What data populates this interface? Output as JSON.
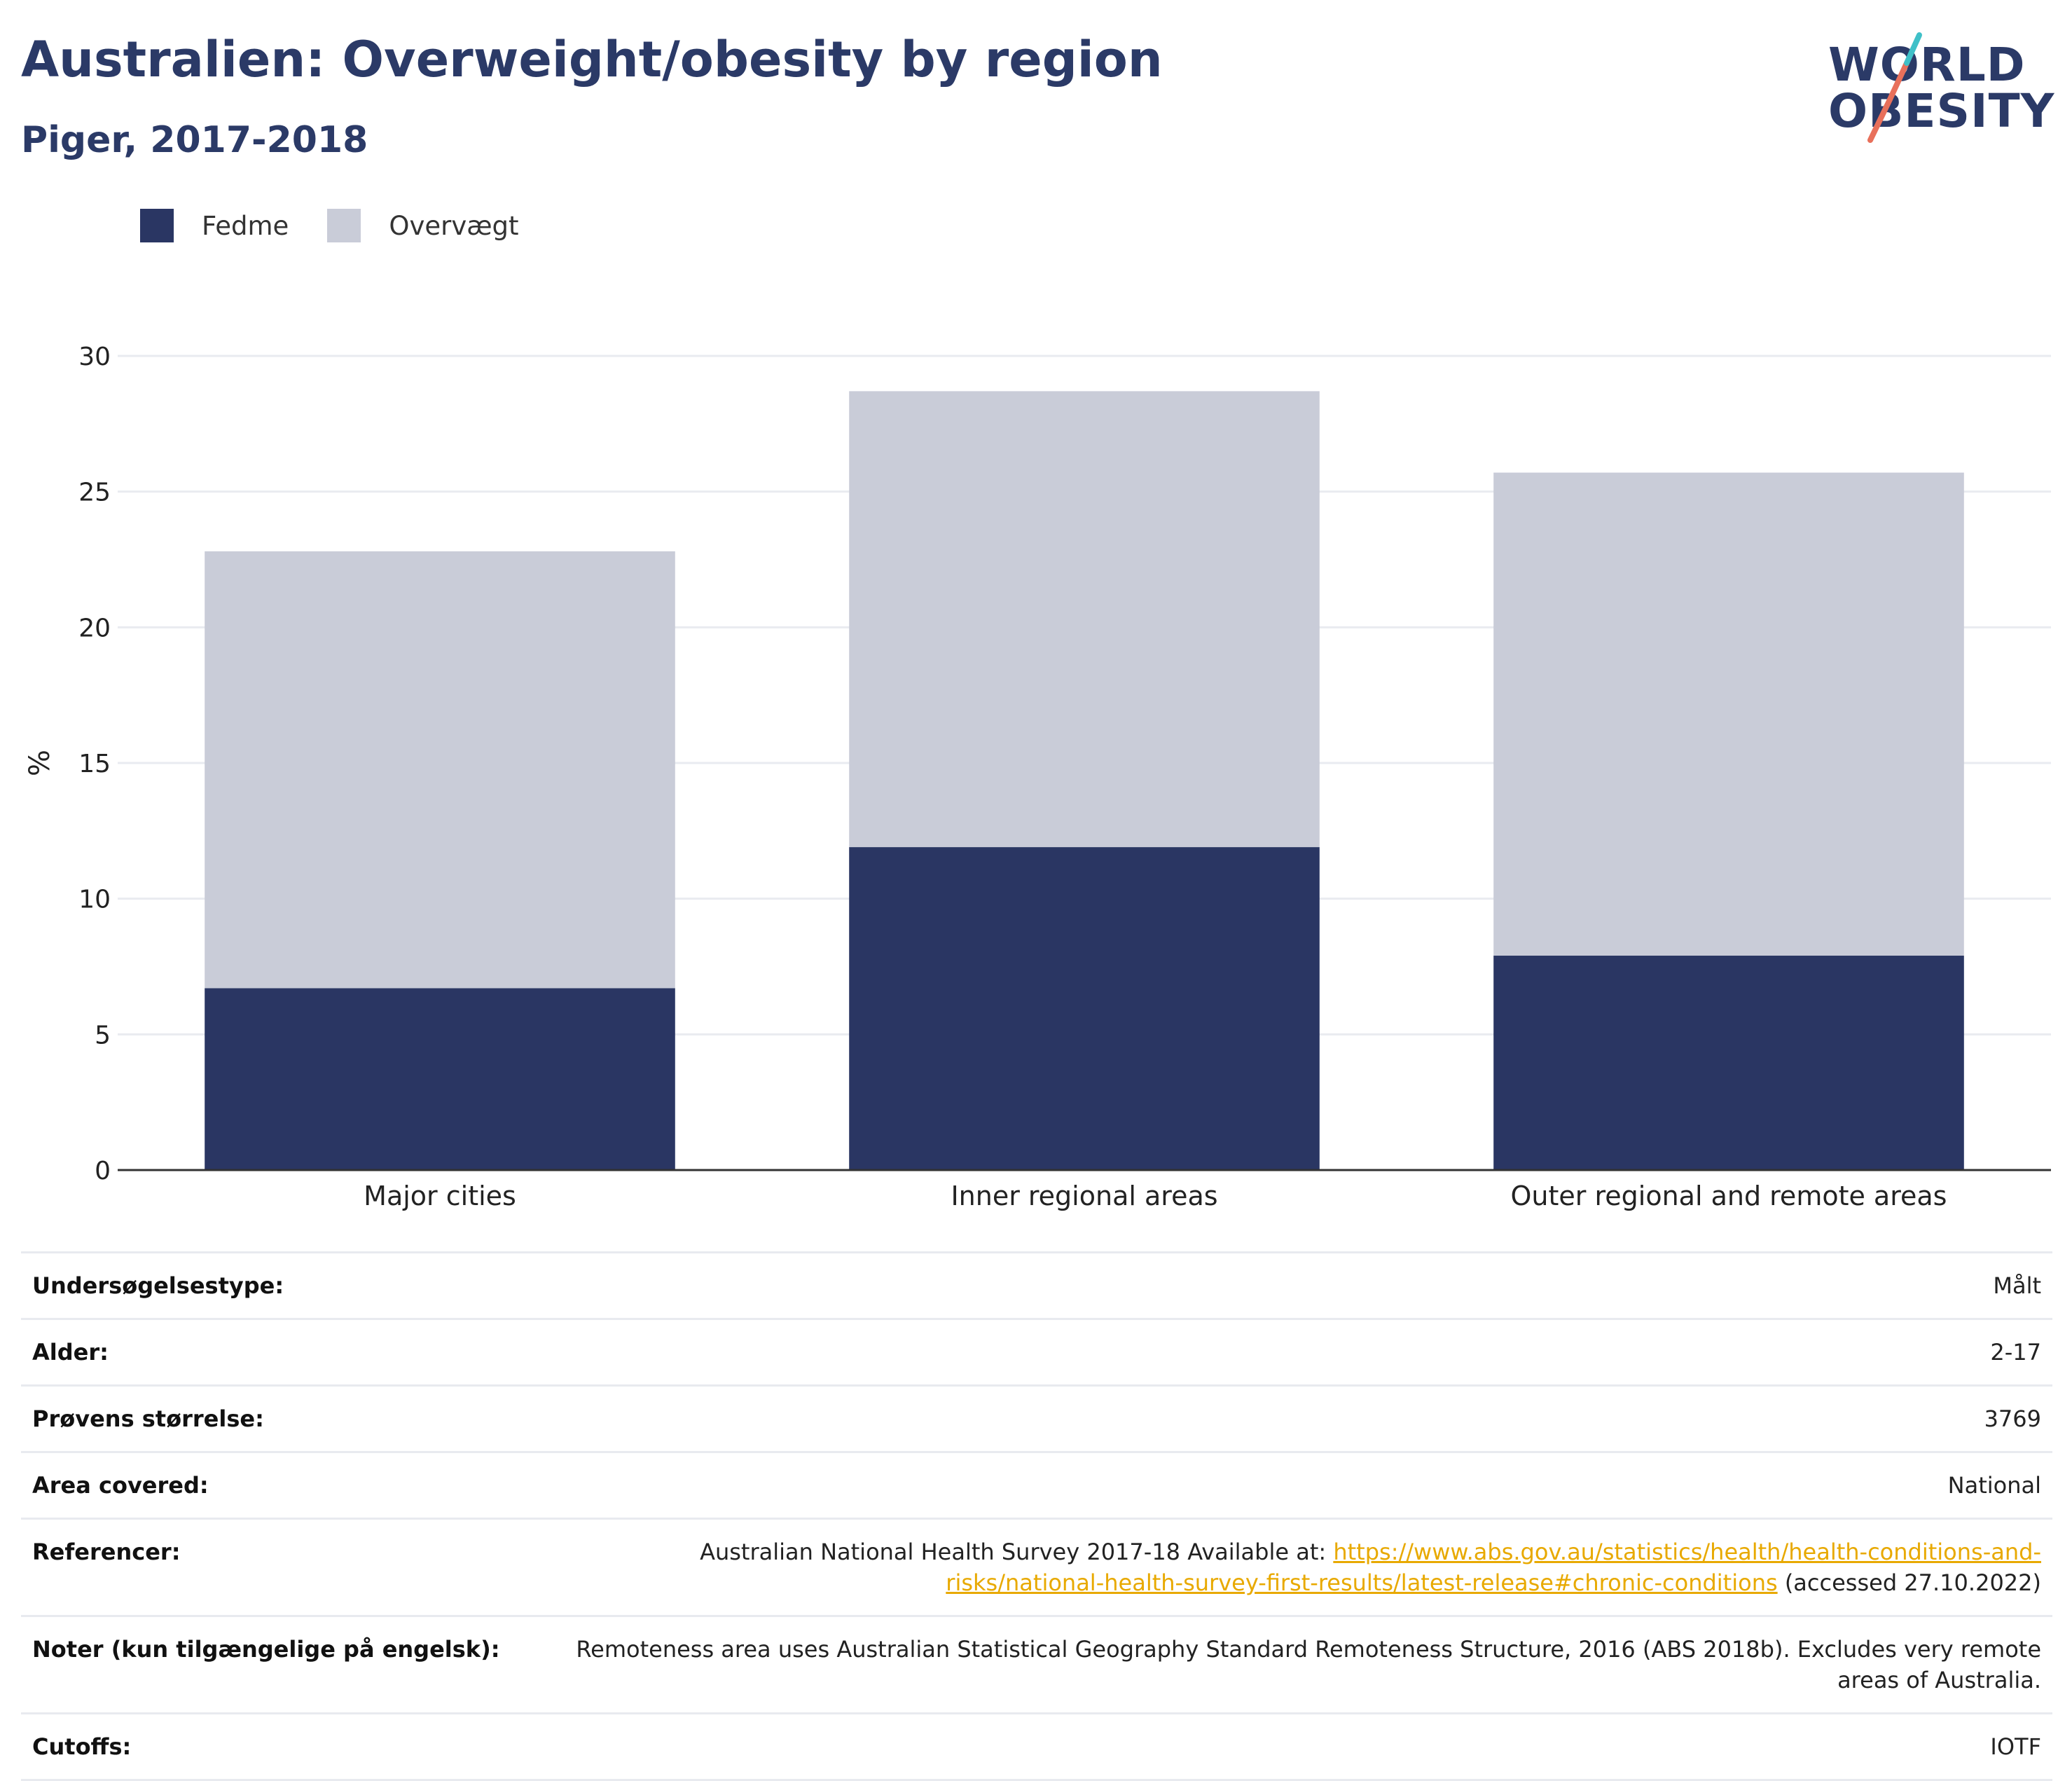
{
  "title": "Australien: Overweight/obesity by region",
  "subtitle": "Piger, 2017-2018",
  "logo": {
    "line1": "WORLD",
    "line2": "OBESITY"
  },
  "colors": {
    "obesity": "#2a3663",
    "overweight": "#c9ccd8",
    "title": "#2b3a67",
    "link": "#e8a900",
    "grid": "#e9ebf0",
    "axis": "#333333"
  },
  "legend": [
    {
      "label": "Fedme",
      "color": "#2a3663"
    },
    {
      "label": "Overvægt",
      "color": "#c9ccd8"
    }
  ],
  "chart_data": {
    "type": "bar",
    "stacked": true,
    "categories": [
      "Major cities",
      "Inner regional areas",
      "Outer regional and remote areas"
    ],
    "series": [
      {
        "name": "Fedme",
        "values": [
          6.7,
          11.9,
          7.9
        ]
      },
      {
        "name": "Overvægt",
        "values": [
          16.1,
          16.8,
          17.8
        ]
      }
    ],
    "totals": [
      22.8,
      28.7,
      25.7
    ],
    "ylabel": "%",
    "ylim": [
      0,
      30
    ],
    "yticks": [
      0,
      5,
      10,
      15,
      20,
      25,
      30
    ],
    "grid": true,
    "legend_position": "top-left"
  },
  "meta": [
    {
      "key": "Undersøgelsestype:",
      "value": "Målt"
    },
    {
      "key": "Alder:",
      "value": "2-17"
    },
    {
      "key": "Prøvens størrelse:",
      "value": "3769"
    },
    {
      "key": "Area covered:",
      "value": "National"
    },
    {
      "key": "Referencer:",
      "value_before": "Australian National Health Survey 2017-18 Available at: ",
      "link": "https://www.abs.gov.au/statistics/health/health-conditions-and-risks/national-health-survey-first-results/latest-release#chronic-conditions",
      "value_after": " (accessed 27.10.2022)"
    },
    {
      "key": "Noter (kun tilgængelige på engelsk):",
      "value": "Remoteness area uses Australian Statistical Geography Standard Remoteness Structure, 2016 (ABS 2018b). Excludes very remote areas of Australia."
    },
    {
      "key": "Cutoffs:",
      "value": "IOTF"
    }
  ]
}
